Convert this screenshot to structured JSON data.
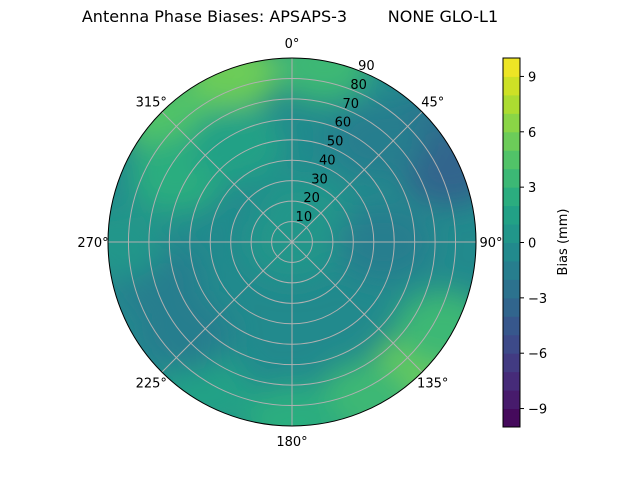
{
  "chart_data": {
    "type": "polar-contour",
    "title": "Antenna Phase Biases: APSAPS-3        NONE GLO-L1",
    "theta_direction": "clockwise",
    "theta_zero": "north",
    "azimuth_tick_labels": [
      "0°",
      "45°",
      "90°",
      "135°",
      "180°",
      "225°",
      "270°",
      "315°"
    ],
    "azimuth_ticks": [
      0,
      45,
      90,
      135,
      180,
      225,
      270,
      315
    ],
    "radial_ticks": [
      10,
      20,
      30,
      40,
      50,
      60,
      70,
      80,
      90
    ],
    "radial_tick_labels": [
      "10",
      "20",
      "30",
      "40",
      "50",
      "60",
      "70",
      "80",
      "90"
    ],
    "rlim": [
      0,
      90
    ],
    "grid": true,
    "colormap": "viridis",
    "levels": [
      -10,
      -9,
      -8,
      -7,
      -6,
      -5,
      -4,
      -3,
      -2,
      -1,
      0,
      1,
      2,
      3,
      4,
      5,
      6,
      7,
      8,
      9,
      10
    ],
    "colorbar": {
      "label": "Bias (mm)",
      "range": [
        -10,
        10
      ],
      "ticks": [
        9,
        6,
        3,
        0,
        -3,
        -6,
        -9
      ],
      "tick_labels": [
        "9",
        "6",
        "3",
        "0",
        "−3",
        "−6",
        "−9"
      ],
      "placement": "right"
    },
    "background_bias": -1,
    "regions": [
      {
        "azimuth": 0,
        "zenith": 0,
        "bias": 0
      },
      {
        "azimuth": 20,
        "zenith": 15,
        "bias": 0
      },
      {
        "azimuth": 340,
        "zenith": 88,
        "bias": 5
      },
      {
        "azimuth": 315,
        "zenith": 85,
        "bias": 4
      },
      {
        "azimuth": 10,
        "zenith": 88,
        "bias": 3
      },
      {
        "azimuth": 300,
        "zenith": 65,
        "bias": 2
      },
      {
        "azimuth": 330,
        "zenith": 55,
        "bias": 1
      },
      {
        "azimuth": 50,
        "zenith": 82,
        "bias": -3
      },
      {
        "azimuth": 65,
        "zenith": 85,
        "bias": -4
      },
      {
        "azimuth": 40,
        "zenith": 65,
        "bias": -2
      },
      {
        "azimuth": 90,
        "zenith": 45,
        "bias": -2
      },
      {
        "azimuth": 255,
        "zenith": 70,
        "bias": -2
      },
      {
        "azimuth": 270,
        "zenith": 85,
        "bias": 0
      },
      {
        "azimuth": 135,
        "zenith": 88,
        "bias": 5
      },
      {
        "azimuth": 120,
        "zenith": 85,
        "bias": 3
      },
      {
        "azimuth": 155,
        "zenith": 85,
        "bias": 3
      },
      {
        "azimuth": 180,
        "zenith": 88,
        "bias": 2
      },
      {
        "azimuth": 210,
        "zenith": 85,
        "bias": 1
      },
      {
        "azimuth": 230,
        "zenith": 70,
        "bias": -2
      }
    ]
  }
}
